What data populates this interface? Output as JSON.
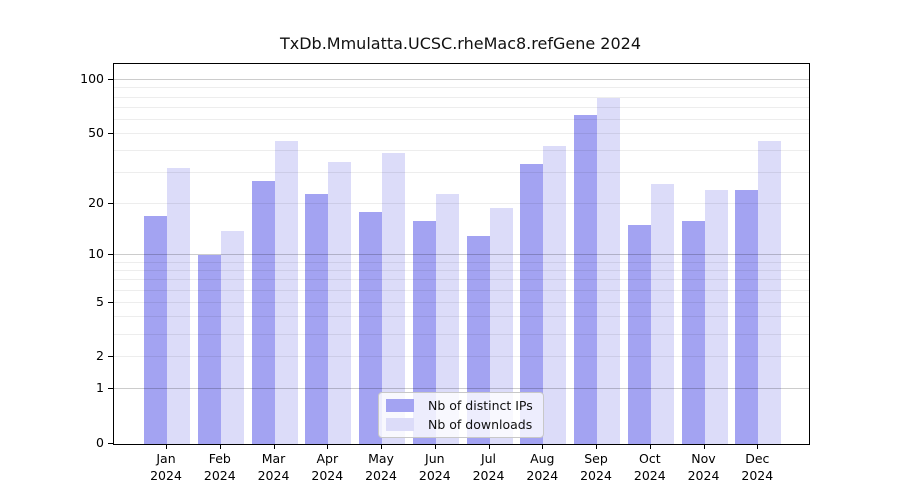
{
  "title": "TxDb.Mmulatta.UCSC.rheMac8.refGene 2024",
  "legend": {
    "series1_label": "Nb of distinct IPs",
    "series2_label": "Nb of downloads"
  },
  "colors": {
    "distinct_ips": "#a3a3f2",
    "downloads": "#dcdcf9",
    "spine": "#000000"
  },
  "chart_data": {
    "type": "bar",
    "scale": "log1p",
    "title": "TxDb.Mmulatta.UCSC.rheMac8.refGene 2024",
    "xlabel": "",
    "ylabel": "",
    "year": "2024",
    "categories": [
      "Jan",
      "Feb",
      "Mar",
      "Apr",
      "May",
      "Jun",
      "Jul",
      "Aug",
      "Sep",
      "Oct",
      "Nov",
      "Dec"
    ],
    "series": [
      {
        "name": "Nb of distinct IPs",
        "values": [
          17,
          10,
          27,
          23,
          18,
          16,
          13,
          34,
          64,
          15,
          16,
          24
        ]
      },
      {
        "name": "Nb of downloads",
        "values": [
          32,
          14,
          46,
          35,
          39,
          23,
          19,
          43,
          80,
          26,
          24,
          46
        ]
      }
    ],
    "yticks": [
      0,
      1,
      2,
      5,
      10,
      20,
      50,
      100
    ],
    "major_gridlines": [
      1,
      10,
      100
    ],
    "minor_gridlines": [
      2,
      3,
      4,
      5,
      6,
      7,
      8,
      9,
      20,
      30,
      40,
      50,
      60,
      70,
      80,
      90
    ],
    "ylim": [
      0,
      123
    ],
    "legend_position": "lower center",
    "grid": true
  }
}
